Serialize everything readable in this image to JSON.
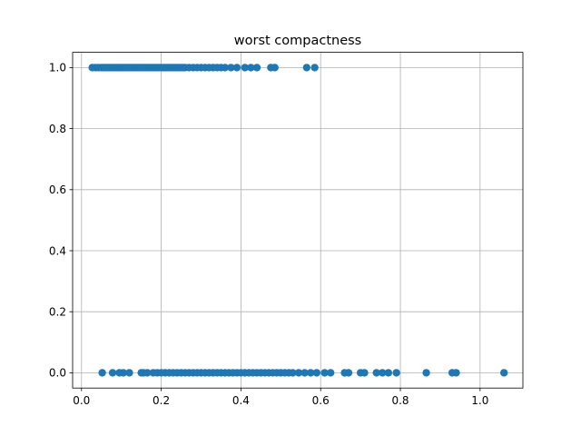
{
  "chart_data": {
    "type": "scatter",
    "title": "worst compactness",
    "xlabel": "",
    "ylabel": "",
    "xlim": [
      -0.0223,
      1.1074
    ],
    "ylim": [
      -0.05,
      1.05
    ],
    "xticks": [
      0.0,
      0.2,
      0.4,
      0.6,
      0.8,
      1.0
    ],
    "xtick_labels": [
      "0.0",
      "0.2",
      "0.4",
      "0.6",
      "0.8",
      "1.0"
    ],
    "yticks": [
      0.0,
      0.2,
      0.4,
      0.6,
      0.8,
      1.0
    ],
    "ytick_labels": [
      "0.0",
      "0.2",
      "0.4",
      "0.6",
      "0.8",
      "1.0"
    ],
    "grid": true,
    "marker_color": "#1f77b4",
    "series": [
      {
        "values_y": 1,
        "x": [
          0.027,
          0.035,
          0.042,
          0.05,
          0.055,
          0.06,
          0.065,
          0.07,
          0.075,
          0.08,
          0.085,
          0.09,
          0.095,
          0.1,
          0.105,
          0.11,
          0.115,
          0.12,
          0.125,
          0.13,
          0.135,
          0.14,
          0.145,
          0.15,
          0.155,
          0.16,
          0.165,
          0.17,
          0.175,
          0.18,
          0.185,
          0.19,
          0.195,
          0.2,
          0.205,
          0.21,
          0.215,
          0.22,
          0.225,
          0.23,
          0.235,
          0.24,
          0.245,
          0.25,
          0.255,
          0.26,
          0.27,
          0.28,
          0.29,
          0.3,
          0.31,
          0.32,
          0.33,
          0.34,
          0.35,
          0.36,
          0.375,
          0.39,
          0.41,
          0.425,
          0.44,
          0.475,
          0.485,
          0.565,
          0.585
        ]
      },
      {
        "values_y": 0,
        "x": [
          0.052,
          0.078,
          0.095,
          0.105,
          0.12,
          0.15,
          0.155,
          0.165,
          0.18,
          0.19,
          0.2,
          0.21,
          0.22,
          0.23,
          0.24,
          0.25,
          0.26,
          0.27,
          0.28,
          0.29,
          0.3,
          0.31,
          0.32,
          0.33,
          0.34,
          0.35,
          0.36,
          0.37,
          0.38,
          0.39,
          0.4,
          0.41,
          0.42,
          0.43,
          0.44,
          0.45,
          0.46,
          0.47,
          0.48,
          0.49,
          0.5,
          0.51,
          0.52,
          0.53,
          0.545,
          0.56,
          0.575,
          0.59,
          0.61,
          0.625,
          0.66,
          0.67,
          0.7,
          0.71,
          0.74,
          0.755,
          0.77,
          0.79,
          0.865,
          0.93,
          0.94,
          1.06
        ]
      }
    ]
  }
}
